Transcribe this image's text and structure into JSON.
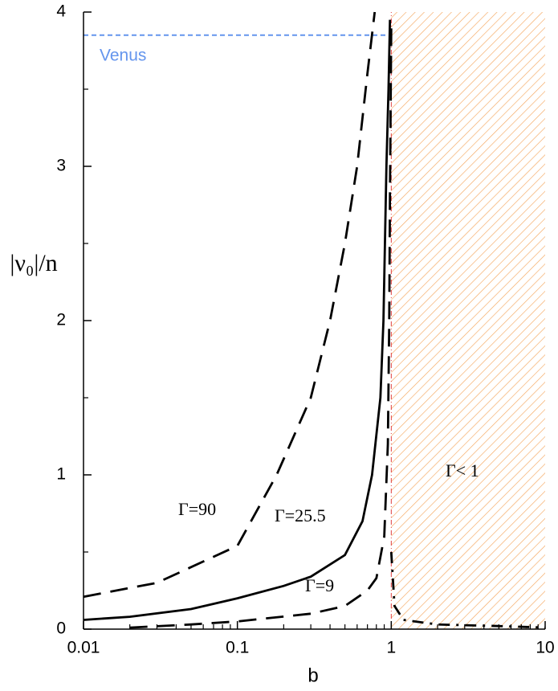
{
  "chart_data": {
    "type": "line",
    "xlabel": "b",
    "ylabel": "|ν₀|/n",
    "xscale": "log",
    "xlim": [
      0.01,
      10
    ],
    "ylim": [
      0,
      4
    ],
    "xticks": [
      0.01,
      0.1,
      1,
      10
    ],
    "yticks": [
      0,
      1,
      2,
      3,
      4
    ],
    "series": [
      {
        "name": "Γ=90",
        "color": "#000000",
        "dash": "dashed",
        "x": [
          0.01,
          0.03,
          0.1,
          0.18,
          0.3,
          0.4,
          0.5,
          0.6,
          0.7,
          0.78
        ],
        "values": [
          0.21,
          0.3,
          0.54,
          1.0,
          1.5,
          2.0,
          2.5,
          3.0,
          3.6,
          4.0
        ]
      },
      {
        "name": "Γ=25.5",
        "color": "#000000",
        "dash": "solid",
        "x": [
          0.01,
          0.02,
          0.05,
          0.1,
          0.2,
          0.3,
          0.5,
          0.65,
          0.75,
          0.85,
          0.89,
          0.93,
          0.96,
          0.98
        ],
        "values": [
          0.06,
          0.08,
          0.13,
          0.2,
          0.28,
          0.34,
          0.48,
          0.7,
          1.0,
          1.5,
          2.0,
          3.0,
          3.5,
          3.95
        ]
      },
      {
        "name": "Γ=9",
        "color": "#000000",
        "dash": "dashed",
        "x": [
          0.02,
          0.05,
          0.1,
          0.3,
          0.5,
          0.7,
          0.8,
          0.9,
          0.95,
          0.97,
          0.98,
          1.0
        ],
        "values": [
          0.01,
          0.03,
          0.05,
          0.1,
          0.15,
          0.25,
          0.33,
          0.6,
          1.2,
          2.0,
          2.8,
          3.9
        ]
      },
      {
        "name": "Γ< 1",
        "color": "#000000",
        "dash": "dashdot",
        "x": [
          1.0,
          1.05,
          1.2,
          2,
          5,
          10
        ],
        "values": [
          0.5,
          0.15,
          0.06,
          0.03,
          0.02,
          0.01
        ]
      }
    ],
    "reference_line": {
      "label": "Venus",
      "value": 3.85,
      "xlim": [
        0.01,
        1
      ],
      "color": "#6495ed"
    },
    "shaded_region": {
      "xlim": [
        1,
        10
      ],
      "color": "#f5a860",
      "edge_color": "#e04040"
    }
  }
}
